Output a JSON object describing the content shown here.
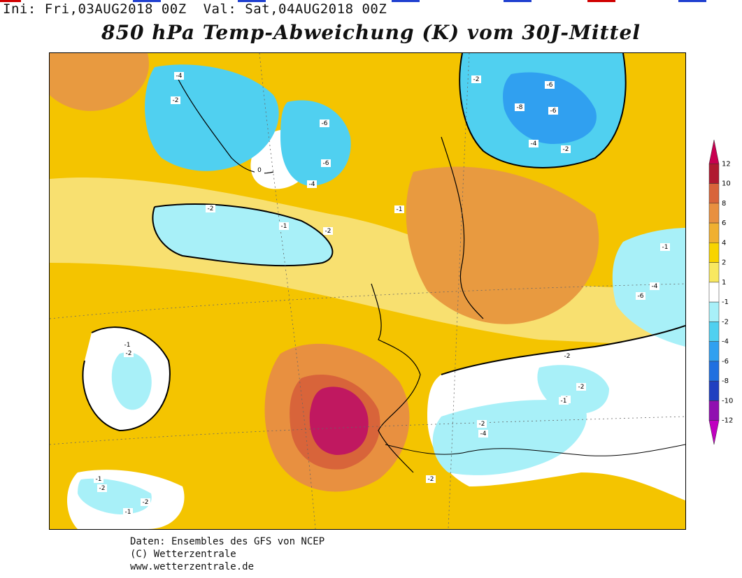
{
  "header": {
    "init_label": "Ini:",
    "init_value": "Fri,03AUG2018 00Z",
    "valid_label": "Val:",
    "valid_value": "Sat,04AUG2018 00Z"
  },
  "title": "850 hPa Temp-Abweichung (K) vom 30J-Mittel",
  "colorbar": {
    "labels": [
      "12",
      "10",
      "8",
      "6",
      "4",
      "2",
      "1",
      "-1",
      "-2",
      "-4",
      "-6",
      "-8",
      "-10",
      "-12"
    ],
    "colors": [
      "#c80050",
      "#b01a30",
      "#d8643a",
      "#e89040",
      "#f0b030",
      "#f8d400",
      "#f8e860",
      "#ffffff",
      "#a8f0f8",
      "#50d0f0",
      "#30a0f0",
      "#2070e0",
      "#2040c0",
      "#9010b0",
      "#c000c0"
    ]
  },
  "credits": {
    "line1": "Daten: Ensembles des GFS von NCEP",
    "line2": "(C) Wetterzentrale",
    "line3": "www.wetterzentrale.de"
  },
  "map_labels": {
    "values": [
      "-2",
      "-4",
      "-6",
      "-8",
      "-6",
      "-4",
      "-2",
      "-1",
      "0",
      "-2",
      "-1",
      "-6",
      "-1",
      "-4",
      "-6",
      "-2",
      "-1",
      "-2",
      "-1",
      "-2",
      "-1",
      "-2",
      "-4",
      "-2",
      "-1",
      "-2",
      "-2",
      "-1",
      "-4",
      "-6",
      "-2",
      "-2"
    ]
  }
}
